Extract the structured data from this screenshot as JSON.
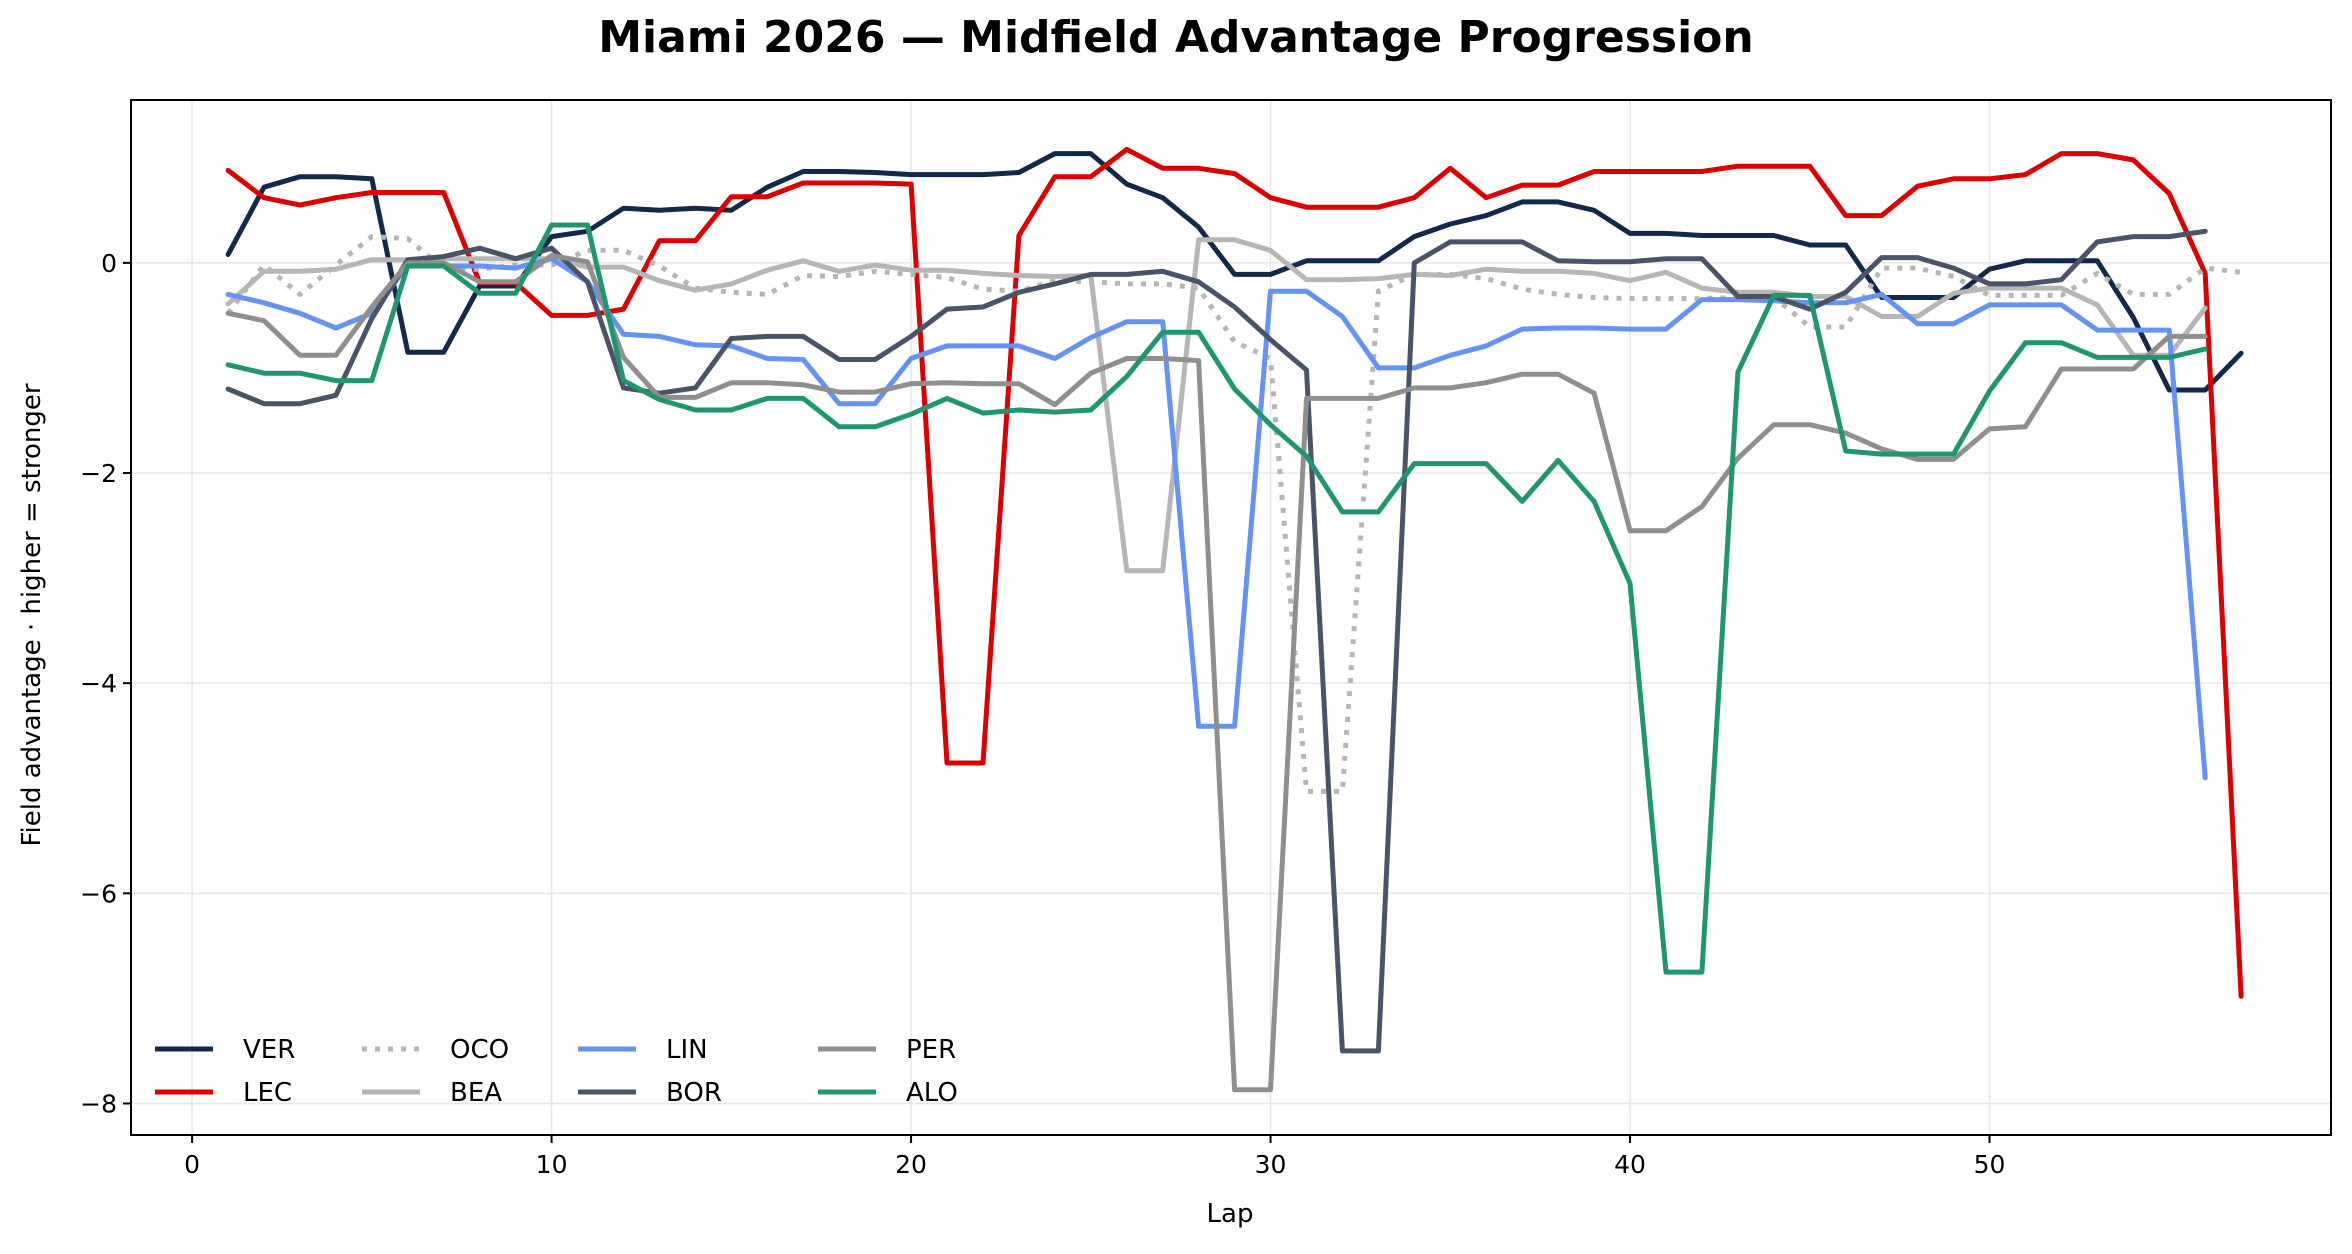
{
  "chart_data": {
    "type": "line",
    "title": "Miami 2026 — Midfield Advantage Progression",
    "xlabel": "Lap",
    "ylabel": "Field advantage · higher = stronger",
    "xlim": [
      -1.7,
      59.5
    ],
    "ylim": [
      -8.3,
      1.55
    ],
    "xticks": [
      0,
      10,
      20,
      30,
      40,
      50
    ],
    "yticks": [
      -8,
      -6,
      -4,
      -2,
      0
    ],
    "grid": true,
    "legend": {
      "placement": "lower-left",
      "columns": 4
    },
    "series": [
      {
        "name": "VER",
        "color": "#14284b",
        "style": "solid",
        "values": [
          0.08,
          0.72,
          0.82,
          0.82,
          0.8,
          -0.85,
          -0.85,
          -0.22,
          -0.22,
          0.25,
          0.3,
          0.52,
          0.5,
          0.52,
          0.5,
          0.72,
          0.87,
          0.87,
          0.86,
          0.84,
          0.84,
          0.84,
          0.86,
          1.04,
          1.04,
          0.75,
          0.62,
          0.34,
          -0.11,
          -0.11,
          0.02,
          0.02,
          0.02,
          0.25,
          0.37,
          0.45,
          0.58,
          0.58,
          0.5,
          0.28,
          0.28,
          0.26,
          0.26,
          0.26,
          0.17,
          0.17,
          -0.33,
          -0.33,
          -0.33,
          -0.06,
          0.02,
          0.02,
          0.02,
          -0.52,
          -1.21,
          -1.21,
          -0.86
        ]
      },
      {
        "name": "LEC",
        "color": "#dc0000",
        "style": "solid",
        "values": [
          0.88,
          0.62,
          0.55,
          0.62,
          0.67,
          0.67,
          0.67,
          -0.19,
          -0.19,
          -0.5,
          -0.5,
          -0.44,
          0.21,
          0.21,
          0.63,
          0.63,
          0.76,
          0.76,
          0.76,
          0.75,
          -4.76,
          -4.76,
          0.26,
          0.82,
          0.82,
          1.08,
          0.9,
          0.9,
          0.85,
          0.62,
          0.53,
          0.53,
          0.53,
          0.62,
          0.9,
          0.62,
          0.74,
          0.74,
          0.87,
          0.87,
          0.87,
          0.87,
          0.92,
          0.92,
          0.92,
          0.45,
          0.45,
          0.73,
          0.8,
          0.8,
          0.84,
          1.04,
          1.04,
          0.98,
          0.66,
          -0.1,
          -6.98
        ]
      },
      {
        "name": "OCO",
        "color": "#b6b6b6",
        "style": "dotted",
        "values": [
          -0.48,
          -0.02,
          -0.3,
          -0.02,
          0.25,
          0.23,
          -0.06,
          -0.06,
          -0.02,
          -0.02,
          0.12,
          0.12,
          -0.03,
          -0.24,
          -0.28,
          -0.3,
          -0.12,
          -0.13,
          -0.08,
          -0.11,
          -0.14,
          -0.25,
          -0.27,
          -0.17,
          -0.18,
          -0.2,
          -0.2,
          -0.24,
          -0.75,
          -0.91,
          -5.03,
          -5.03,
          -0.27,
          -0.11,
          -0.11,
          -0.15,
          -0.25,
          -0.3,
          -0.33,
          -0.34,
          -0.34,
          -0.34,
          -0.33,
          -0.32,
          -0.61,
          -0.61,
          -0.05,
          -0.05,
          -0.13,
          -0.31,
          -0.31,
          -0.31,
          -0.1,
          -0.3,
          -0.3,
          -0.05,
          -0.09
        ]
      },
      {
        "name": "BEA",
        "color": "#b6b6b6",
        "style": "solid",
        "values": [
          -0.39,
          -0.08,
          -0.08,
          -0.06,
          0.03,
          0.03,
          0.04,
          0.04,
          0.04,
          0.04,
          -0.04,
          -0.04,
          -0.17,
          -0.26,
          -0.2,
          -0.07,
          0.02,
          -0.08,
          -0.02,
          -0.07,
          -0.07,
          -0.1,
          -0.12,
          -0.13,
          -0.12,
          -2.93,
          -2.93,
          0.22,
          0.22,
          0.12,
          -0.16,
          -0.16,
          -0.15,
          -0.11,
          -0.12,
          -0.06,
          -0.08,
          -0.08,
          -0.1,
          -0.17,
          -0.09,
          -0.24,
          -0.28,
          -0.28,
          -0.32,
          -0.32,
          -0.51,
          -0.51,
          -0.29,
          -0.24,
          -0.24,
          -0.24,
          -0.4,
          -0.88,
          -0.88,
          -0.43
        ]
      },
      {
        "name": "LIN",
        "color": "#6492f5",
        "style": "solid",
        "values": [
          -0.3,
          -0.38,
          -0.48,
          -0.62,
          -0.48,
          -0.02,
          -0.03,
          -0.03,
          -0.05,
          0.04,
          -0.18,
          -0.68,
          -0.7,
          -0.78,
          -0.79,
          -0.91,
          -0.92,
          -1.34,
          -1.34,
          -0.91,
          -0.79,
          -0.79,
          -0.79,
          -0.91,
          -0.71,
          -0.56,
          -0.56,
          -4.41,
          -4.41,
          -0.27,
          -0.27,
          -0.51,
          -1.0,
          -1.0,
          -0.88,
          -0.79,
          -0.63,
          -0.62,
          -0.62,
          -0.63,
          -0.63,
          -0.35,
          -0.35,
          -0.36,
          -0.38,
          -0.38,
          -0.3,
          -0.58,
          -0.58,
          -0.4,
          -0.4,
          -0.4,
          -0.64,
          -0.64,
          -0.64,
          -4.9
        ]
      },
      {
        "name": "BOR",
        "color": "#4a5468",
        "style": "solid",
        "values": [
          -1.2,
          -1.34,
          -1.34,
          -1.26,
          -0.53,
          0.03,
          0.06,
          0.14,
          0.04,
          0.14,
          -0.18,
          -1.19,
          -1.24,
          -1.19,
          -0.72,
          -0.7,
          -0.7,
          -0.92,
          -0.92,
          -0.7,
          -0.44,
          -0.42,
          -0.28,
          -0.2,
          -0.11,
          -0.11,
          -0.08,
          -0.18,
          -0.42,
          -0.73,
          -1.02,
          -7.5,
          -7.5,
          0.0,
          0.2,
          0.2,
          0.2,
          0.02,
          0.01,
          0.01,
          0.04,
          0.04,
          -0.32,
          -0.32,
          -0.44,
          -0.28,
          0.05,
          0.05,
          -0.05,
          -0.2,
          -0.2,
          -0.16,
          0.2,
          0.25,
          0.25,
          0.3
        ]
      },
      {
        "name": "PER",
        "color": "#8f8f8f",
        "style": "solid",
        "values": [
          -0.48,
          -0.55,
          -0.88,
          -0.88,
          -0.42,
          0.0,
          0.0,
          -0.18,
          -0.18,
          0.07,
          0.01,
          -0.9,
          -1.28,
          -1.28,
          -1.14,
          -1.14,
          -1.16,
          -1.23,
          -1.23,
          -1.15,
          -1.14,
          -1.15,
          -1.15,
          -1.35,
          -1.05,
          -0.91,
          -0.91,
          -0.93,
          -7.87,
          -7.87,
          -1.29,
          -1.29,
          -1.29,
          -1.19,
          -1.19,
          -1.14,
          -1.06,
          -1.06,
          -1.24,
          -2.55,
          -2.55,
          -2.32,
          -1.86,
          -1.54,
          -1.54,
          -1.62,
          -1.77,
          -1.87,
          -1.87,
          -1.58,
          -1.56,
          -1.01,
          -1.01,
          -1.01,
          -0.7,
          -0.7
        ]
      },
      {
        "name": "ALO",
        "color": "#1f9670",
        "style": "solid",
        "values": [
          -0.97,
          -1.05,
          -1.05,
          -1.12,
          -1.12,
          -0.03,
          -0.03,
          -0.29,
          -0.29,
          0.36,
          0.36,
          -1.12,
          -1.3,
          -1.4,
          -1.4,
          -1.29,
          -1.29,
          -1.56,
          -1.56,
          -1.44,
          -1.29,
          -1.43,
          -1.4,
          -1.42,
          -1.4,
          -1.08,
          -0.66,
          -0.66,
          -1.2,
          -1.54,
          -1.84,
          -2.37,
          -2.37,
          -1.91,
          -1.91,
          -1.91,
          -2.27,
          -1.88,
          -2.27,
          -3.05,
          -6.75,
          -6.75,
          -1.04,
          -0.31,
          -0.31,
          -1.79,
          -1.82,
          -1.82,
          -1.82,
          -1.22,
          -0.76,
          -0.76,
          -0.9,
          -0.9,
          -0.9,
          -0.82
        ]
      }
    ]
  }
}
